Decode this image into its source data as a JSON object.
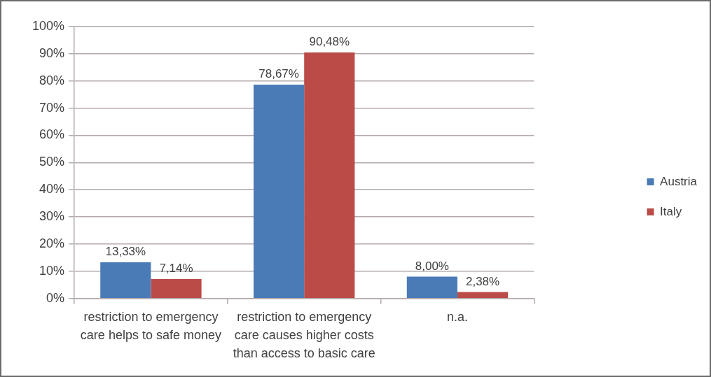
{
  "chart_data": {
    "type": "bar",
    "categories": [
      "restriction to emergency care helps to safe money",
      "restriction to emergency care causes higher costs than access to basic care",
      "n.a."
    ],
    "series": [
      {
        "name": "Austria",
        "color": "#4a7bb7",
        "values": [
          13.33,
          78.67,
          8.0
        ],
        "value_labels": [
          "13,33%",
          "78,67%",
          "8,00%"
        ]
      },
      {
        "name": "Italy",
        "color": "#bb4b47",
        "values": [
          7.14,
          90.48,
          2.38
        ],
        "value_labels": [
          "7,14%",
          "90,48%",
          "2,38%"
        ]
      }
    ],
    "ylim": [
      0,
      100
    ],
    "yticks": [
      {
        "value": 0,
        "label": "0%"
      },
      {
        "value": 10,
        "label": "10%"
      },
      {
        "value": 20,
        "label": "20%"
      },
      {
        "value": 30,
        "label": "30%"
      },
      {
        "value": 40,
        "label": "40%"
      },
      {
        "value": 50,
        "label": "50%"
      },
      {
        "value": 60,
        "label": "60%"
      },
      {
        "value": 70,
        "label": "70%"
      },
      {
        "value": 80,
        "label": "80%"
      },
      {
        "value": 90,
        "label": "90%"
      },
      {
        "value": 100,
        "label": "100%"
      }
    ],
    "grid": "y",
    "legend": "right"
  }
}
